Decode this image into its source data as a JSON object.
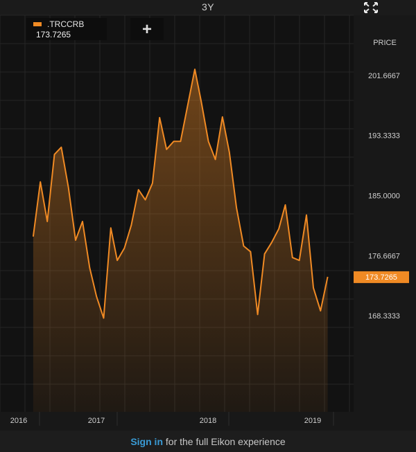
{
  "header": {
    "range_label": "3Y"
  },
  "legend": {
    "symbol": ".TRCCRB",
    "last_value": "173.7265",
    "color": "#f08a24"
  },
  "toolbar": {
    "add_label": "+"
  },
  "axis": {
    "title": "PRICE"
  },
  "footer": {
    "link_text": "Sign in",
    "text": " for the full Eikon experience",
    "link_color": "#3a9bd5"
  },
  "chart_data": {
    "type": "area",
    "series": [
      {
        "name": ".TRCCRB",
        "x": [
          "2016-03",
          "2016-04",
          "2016-05",
          "2016-06",
          "2016-07",
          "2016-08",
          "2016-09",
          "2016-10",
          "2016-11",
          "2016-12",
          "2017-01",
          "2017-02",
          "2017-03",
          "2017-04",
          "2017-05",
          "2017-06",
          "2017-07",
          "2017-08",
          "2017-09",
          "2017-10",
          "2017-11",
          "2017-12",
          "2018-01",
          "2018-02",
          "2018-03",
          "2018-04",
          "2018-05",
          "2018-06",
          "2018-07",
          "2018-08",
          "2018-09",
          "2018-10",
          "2018-11",
          "2018-12",
          "2019-01",
          "2019-02",
          "2019-03",
          "2019-04",
          "2019-05",
          "2019-06",
          "2019-07",
          "2019-08",
          "2019-09"
        ],
        "values": [
          179.3,
          186.9,
          181.4,
          190.7,
          191.7,
          186.1,
          178.8,
          181.4,
          175.0,
          171.0,
          168.0,
          180.5,
          176.0,
          177.7,
          180.9,
          185.8,
          184.4,
          186.7,
          195.8,
          191.4,
          192.5,
          192.5,
          197.5,
          202.5,
          198.0,
          192.5,
          190.0,
          195.9,
          191.0,
          183.3,
          178.0,
          177.2,
          168.5,
          176.9,
          178.5,
          180.4,
          183.7,
          176.4,
          176.0,
          182.3,
          172.2,
          169.0,
          173.73
        ]
      }
    ],
    "last_value": 173.7265,
    "ylabel": "PRICE",
    "x_ticks": [
      "2016",
      "2017",
      "2018",
      "2019"
    ],
    "y_ticks": [
      "168.3333",
      "176.6667",
      "185.0000",
      "193.3333",
      "201.6667"
    ],
    "ylim": [
      155,
      210
    ],
    "grid": true
  }
}
